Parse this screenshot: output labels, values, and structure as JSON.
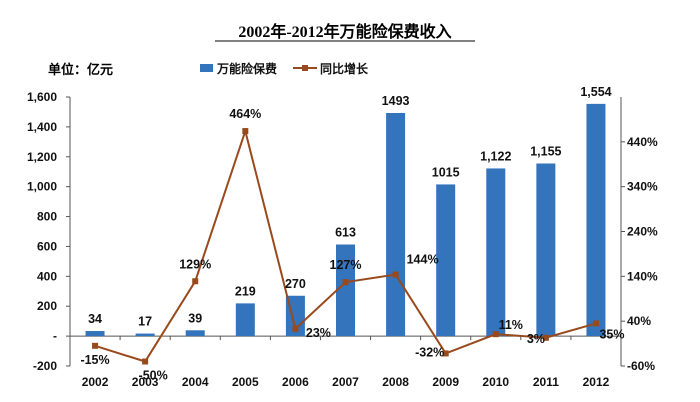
{
  "chart_data": {
    "type": "bar",
    "title": "2002年-2012年万能险保费收入",
    "unit_label": "单位：亿元",
    "categories": [
      "2002",
      "2003",
      "2004",
      "2005",
      "2006",
      "2007",
      "2008",
      "2009",
      "2010",
      "2011",
      "2012"
    ],
    "series": [
      {
        "name": "万能险保费",
        "type": "bar",
        "axis": "left",
        "color": "#3374bc",
        "values": [
          34,
          17,
          39,
          219,
          270,
          613,
          1493,
          1015,
          1122,
          1155,
          1554
        ],
        "labels": [
          "34",
          "17",
          "39",
          "219",
          "270",
          "613",
          "1493",
          "1015",
          "1,122",
          "1,155",
          "1,554"
        ]
      },
      {
        "name": "同比增长",
        "type": "line",
        "axis": "right",
        "color": "#984a1c",
        "values": [
          -15,
          -50,
          129,
          464,
          23,
          127,
          144,
          -32,
          11,
          3,
          35
        ],
        "labels": [
          "-15%",
          "-50%",
          "129%",
          "464%",
          "23%",
          "127%",
          "144%",
          "-32%",
          "11%",
          "3%",
          "35%"
        ]
      }
    ],
    "y_left": {
      "lim": [
        -200,
        1600
      ],
      "ticks": [
        -200,
        0,
        200,
        400,
        600,
        800,
        1000,
        1200,
        1400,
        1600
      ],
      "tick_labels": [
        "-200",
        "-",
        "200",
        "400",
        "600",
        "800",
        "1,000",
        "1,200",
        "1,400",
        "1,600"
      ]
    },
    "y_right": {
      "lim": [
        -60,
        540
      ],
      "ticks": [
        -60,
        40,
        140,
        240,
        340,
        440
      ],
      "tick_labels": [
        "-60%",
        "40%",
        "140%",
        "240%",
        "340%",
        "440%"
      ]
    },
    "grid": false,
    "legend_position": "top"
  }
}
